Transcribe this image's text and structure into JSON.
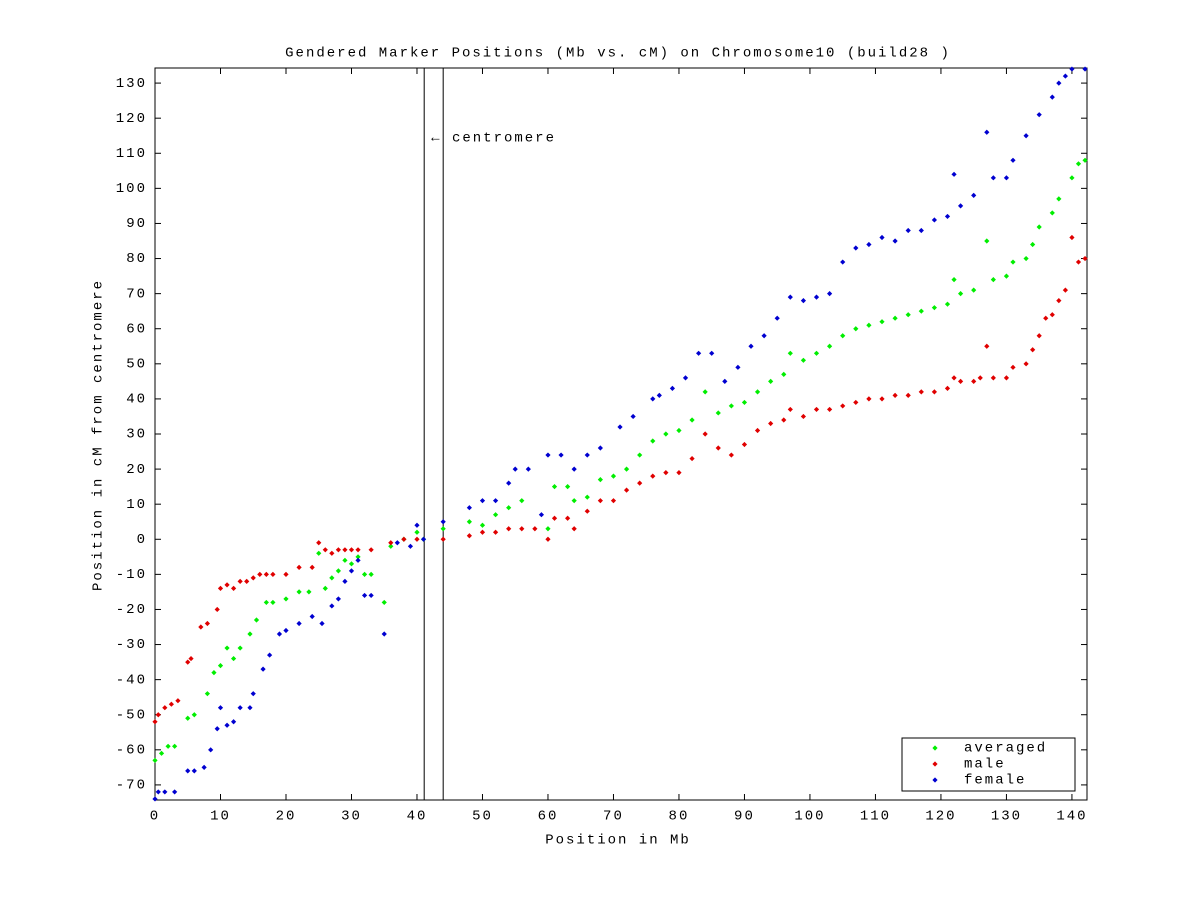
{
  "chart_data": {
    "type": "scatter",
    "title": "Gendered Marker Positions (Mb vs. cM) on Chromosome10 (build28 )",
    "xlabel": "Position in Mb",
    "ylabel": "Position in cM from centromere",
    "annotation": "← centromere",
    "vlines": [
      41.1,
      44.0
    ],
    "xlim": [
      0,
      142.3
    ],
    "ylim": [
      -74.3,
      134.3
    ],
    "xticks": [
      0,
      10,
      20,
      30,
      40,
      50,
      60,
      70,
      80,
      90,
      100,
      110,
      120,
      130,
      140
    ],
    "yticks": [
      -70,
      -60,
      -50,
      -40,
      -30,
      -20,
      -10,
      0,
      10,
      20,
      30,
      40,
      50,
      60,
      70,
      80,
      90,
      100,
      110,
      120,
      130
    ],
    "legend": "lower right",
    "series": [
      {
        "name": "averaged",
        "color": "#00ee00",
        "x": [
          0,
          1,
          2,
          3,
          5,
          6,
          8,
          9,
          10,
          11,
          12,
          13,
          14.5,
          15.5,
          17,
          18,
          20,
          22,
          23.5,
          25,
          26,
          27,
          28,
          29,
          30,
          31,
          32,
          33,
          35,
          36,
          38,
          40,
          41,
          44,
          48,
          50,
          52,
          54,
          56,
          60,
          61,
          63,
          64,
          66,
          68,
          70,
          72,
          74,
          76,
          78,
          80,
          82,
          84,
          86,
          88,
          90,
          92,
          94,
          96,
          97,
          99,
          101,
          103,
          105,
          107,
          109,
          111,
          113,
          115,
          117,
          119,
          121,
          122,
          123,
          125,
          127,
          128,
          130,
          131,
          133,
          134,
          135,
          137,
          138,
          140,
          141,
          142
        ],
        "values": [
          -63,
          -61,
          -59,
          -59,
          -51,
          -50,
          -44,
          -38,
          -36,
          -31,
          -34,
          -31,
          -27,
          -23,
          -18,
          -18,
          -17,
          -15,
          -15,
          -4,
          -14,
          -11,
          -9,
          -6,
          -7,
          -5,
          -10,
          -10,
          -18,
          -2,
          0,
          2,
          0,
          3,
          5,
          4,
          7,
          9,
          11,
          3,
          15,
          15,
          11,
          12,
          17,
          18,
          20,
          24,
          28,
          30,
          31,
          34,
          42,
          36,
          38,
          39,
          42,
          45,
          47,
          53,
          51,
          53,
          55,
          58,
          60,
          61,
          62,
          63,
          64,
          65,
          66,
          67,
          74,
          70,
          71,
          85,
          74,
          75,
          79,
          80,
          84,
          89,
          93,
          97,
          103,
          107,
          108
        ]
      },
      {
        "name": "male",
        "color": "#e00000",
        "x": [
          0,
          0.5,
          1.5,
          2.5,
          3.5,
          5,
          5.5,
          7,
          8,
          9.5,
          10,
          11,
          12,
          13,
          14,
          15,
          16,
          17,
          18,
          20,
          22,
          24,
          25,
          26,
          27,
          28,
          29,
          30,
          31,
          33,
          36,
          38,
          40,
          44,
          48,
          50,
          52,
          54,
          56,
          58,
          60,
          61,
          63,
          64,
          66,
          68,
          70,
          72,
          74,
          76,
          78,
          80,
          82,
          84,
          86,
          88,
          90,
          92,
          94,
          96,
          97,
          99,
          101,
          103,
          105,
          107,
          109,
          111,
          113,
          115,
          117,
          119,
          121,
          122,
          123,
          125,
          126,
          127,
          128,
          130,
          131,
          133,
          134,
          135,
          136,
          137,
          138,
          139,
          140,
          141,
          142
        ],
        "values": [
          -52,
          -50,
          -48,
          -47,
          -46,
          -35,
          -34,
          -25,
          -24,
          -20,
          -14,
          -13,
          -14,
          -12,
          -12,
          -11,
          -10,
          -10,
          -10,
          -10,
          -8,
          -8,
          -1,
          -3,
          -4,
          -3,
          -3,
          -3,
          -3,
          -3,
          -1,
          0,
          0,
          0,
          1,
          2,
          2,
          3,
          3,
          3,
          0,
          6,
          6,
          3,
          8,
          11,
          11,
          14,
          16,
          18,
          19,
          19,
          23,
          30,
          26,
          24,
          27,
          31,
          33,
          34,
          37,
          35,
          37,
          37,
          38,
          39,
          40,
          40,
          41,
          41,
          42,
          42,
          43,
          46,
          45,
          45,
          46,
          55,
          46,
          46,
          49,
          50,
          54,
          58,
          63,
          64,
          68,
          71,
          86,
          79,
          80
        ]
      },
      {
        "name": "female",
        "color": "#0000d0",
        "x": [
          0,
          0.5,
          1.5,
          3,
          5,
          6,
          7.5,
          8.5,
          9.5,
          10,
          11,
          12,
          13,
          14.5,
          15,
          16.5,
          17.5,
          19,
          20,
          22,
          24,
          25.5,
          27,
          28,
          29,
          30,
          31,
          32,
          33,
          35,
          37,
          39,
          40,
          41,
          44,
          48,
          50,
          52,
          54,
          55,
          57,
          59,
          60,
          62,
          64,
          66,
          68,
          71,
          73,
          76,
          77,
          79,
          81,
          83,
          85,
          87,
          89,
          91,
          93,
          95,
          97,
          99,
          101,
          103,
          105,
          107,
          109,
          111,
          113,
          115,
          117,
          119,
          121,
          122,
          123,
          125,
          127,
          128,
          130,
          131,
          133,
          135,
          137,
          138,
          139,
          140,
          142
        ],
        "values": [
          -74,
          -72,
          -72,
          -72,
          -66,
          -66,
          -65,
          -60,
          -54,
          -48,
          -53,
          -52,
          -48,
          -48,
          -44,
          -37,
          -33,
          -27,
          -26,
          -24,
          -22,
          -24,
          -19,
          -17,
          -12,
          -9,
          -6,
          -16,
          -16,
          -27,
          -1,
          -2,
          4,
          0,
          5,
          9,
          11,
          11,
          16,
          20,
          20,
          7,
          24,
          24,
          20,
          24,
          26,
          32,
          35,
          40,
          41,
          43,
          46,
          53,
          53,
          45,
          49,
          55,
          58,
          63,
          69,
          68,
          69,
          70,
          79,
          83,
          84,
          86,
          85,
          88,
          88,
          91,
          92,
          104,
          95,
          98,
          116,
          103,
          103,
          108,
          115,
          121,
          126,
          130,
          132,
          134,
          134
        ]
      }
    ]
  }
}
